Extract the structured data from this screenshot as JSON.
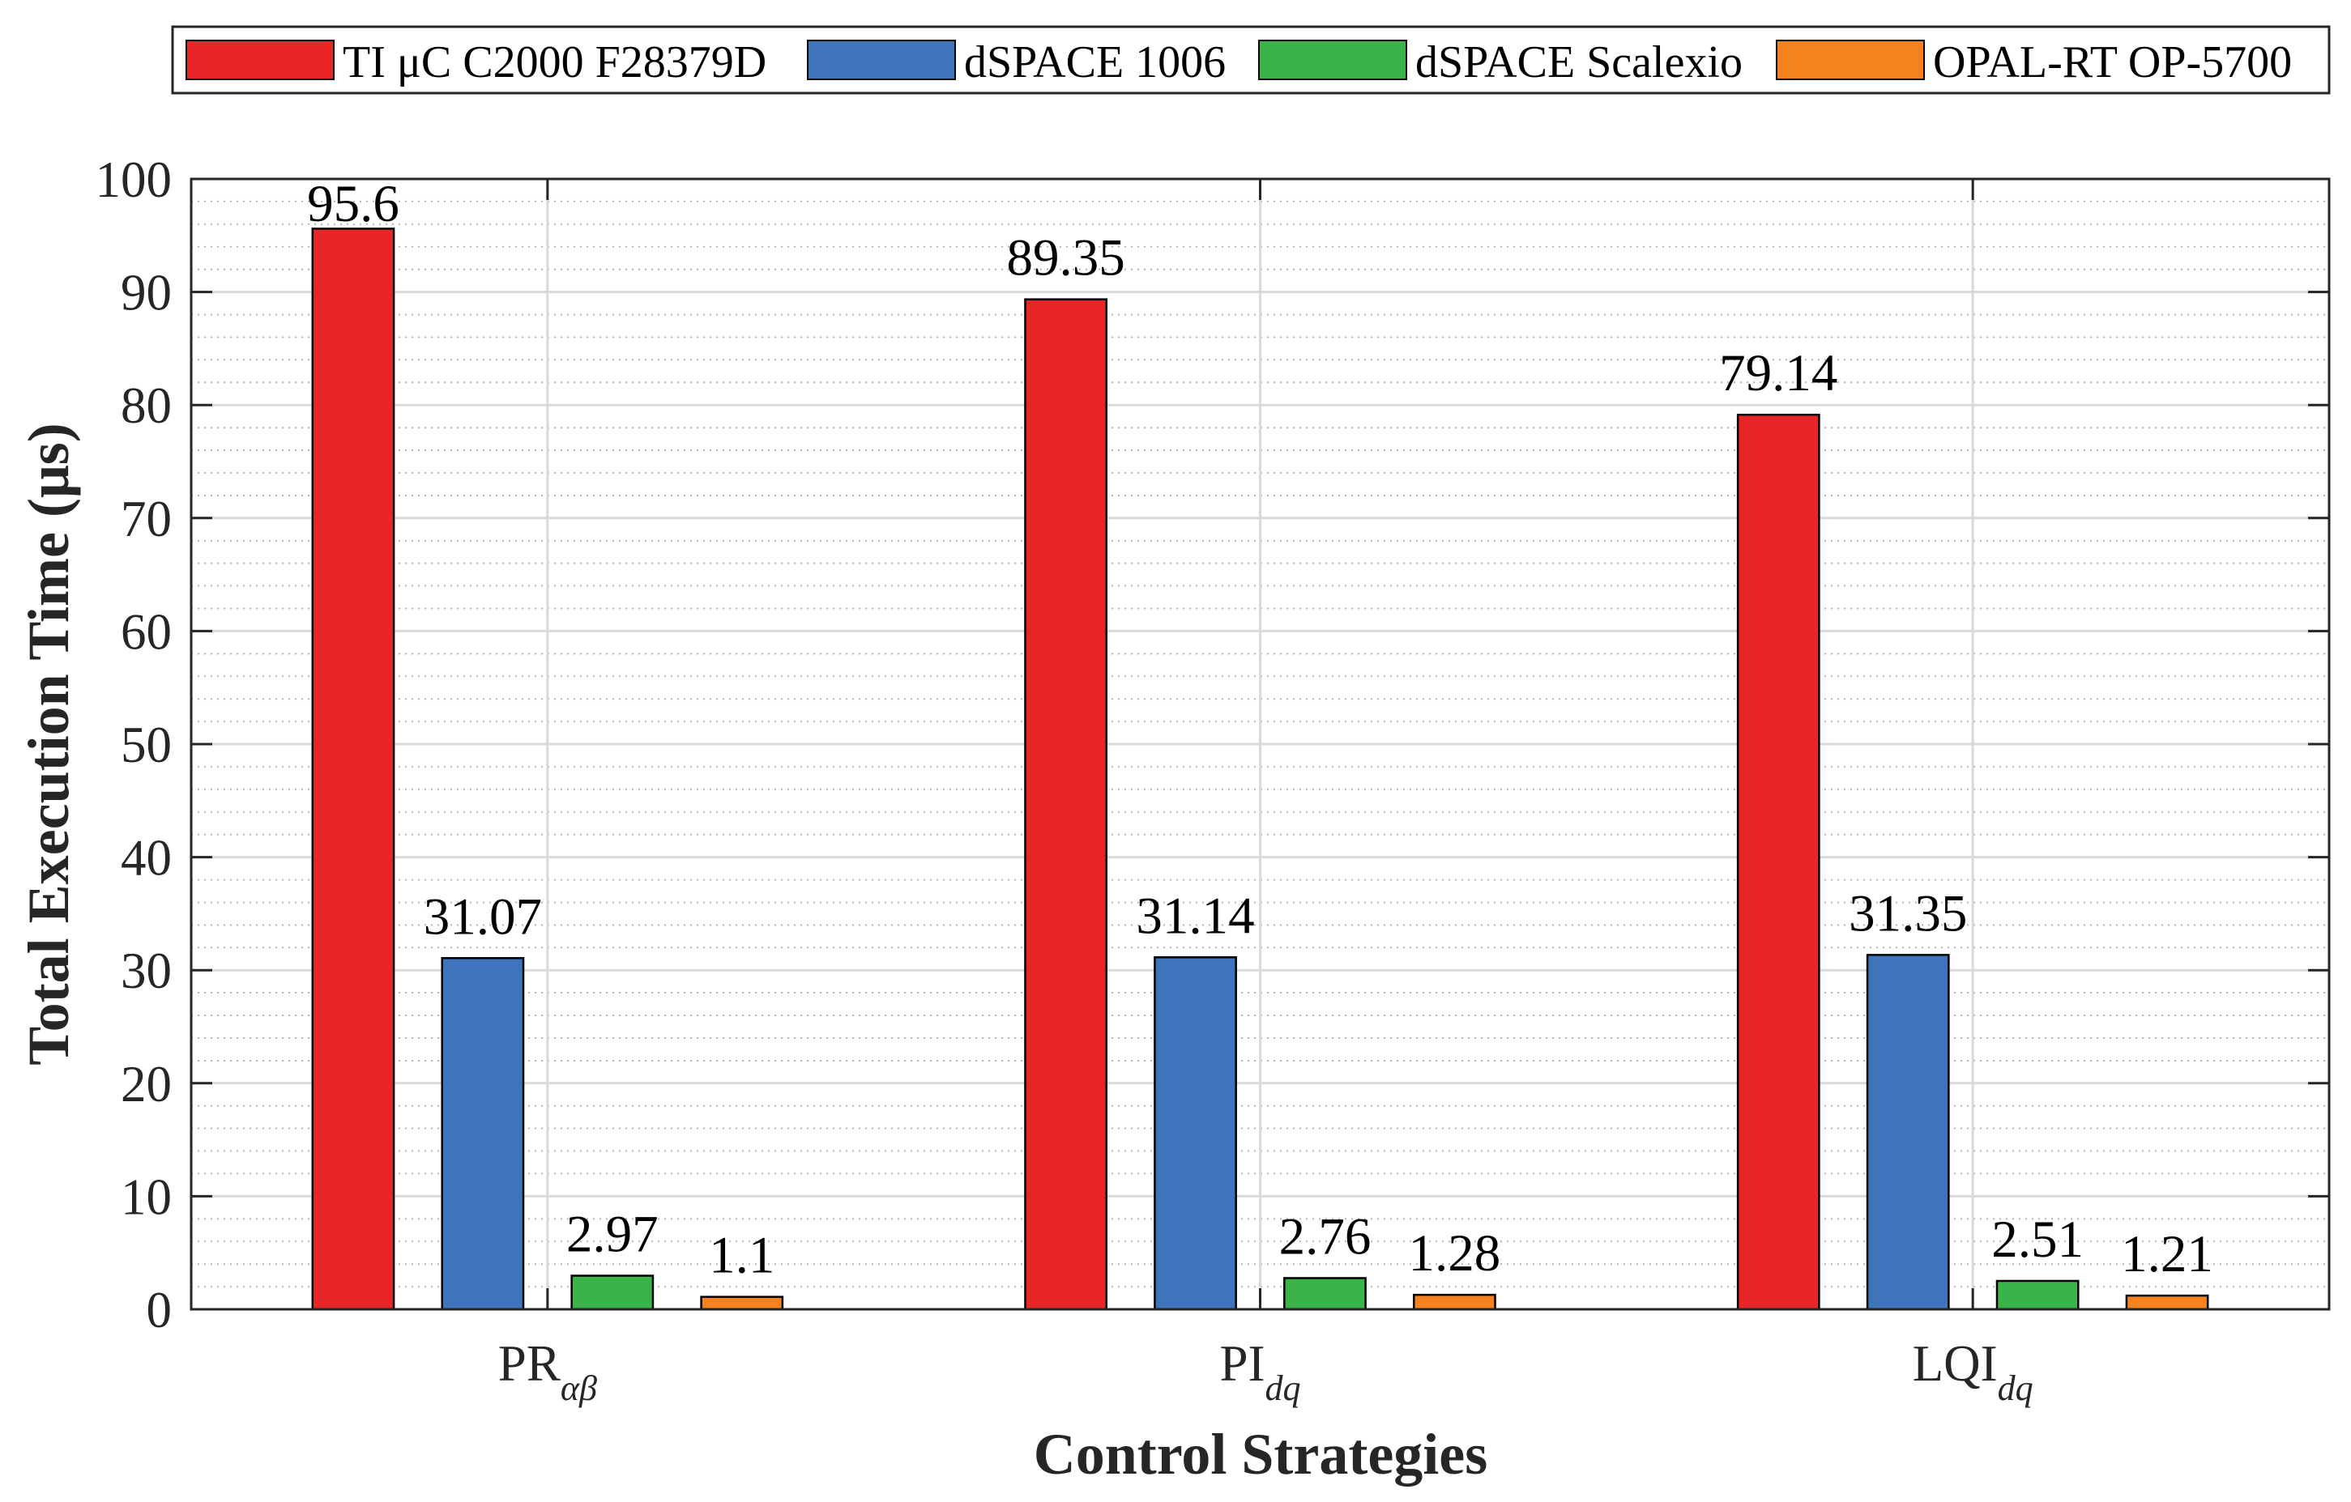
{
  "chart_data": {
    "type": "bar",
    "xlabel": "Control Strategies",
    "ylabel": "Total Execution Time (μs)",
    "categories": [
      {
        "label": "PR",
        "subscript": "αβ"
      },
      {
        "label": "PI",
        "subscript": "dq"
      },
      {
        "label": "LQI",
        "subscript": "dq"
      }
    ],
    "series": [
      {
        "name": "TI μC C2000 F28379D",
        "color": "#E92627",
        "values": [
          95.6,
          89.35,
          79.14
        ]
      },
      {
        "name": "dSPACE 1006",
        "color": "#3E74BB",
        "values": [
          31.07,
          31.14,
          31.35
        ]
      },
      {
        "name": "dSPACE Scalexio",
        "color": "#3AB349",
        "values": [
          2.97,
          2.76,
          2.51
        ]
      },
      {
        "name": "OPAL-RT OP-5700",
        "color": "#F5821F",
        "values": [
          1.1,
          1.28,
          1.21
        ]
      }
    ],
    "ylim": [
      0,
      100
    ],
    "yticks": [
      0,
      10,
      20,
      30,
      40,
      50,
      60,
      70,
      80,
      90,
      100
    ],
    "data_labels": true,
    "grid": true,
    "minor_grid": true,
    "legend_position": "top"
  }
}
